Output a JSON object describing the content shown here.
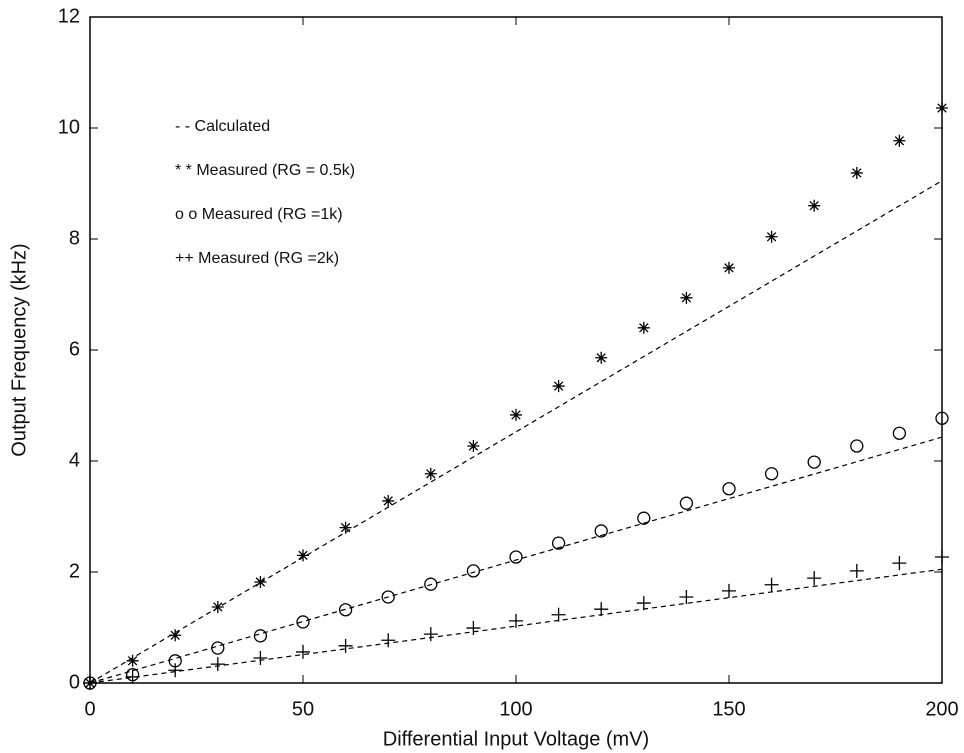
{
  "chart_data": {
    "type": "scatter",
    "xlabel": "Differential Input Voltage (mV)",
    "ylabel": "Output Frequency (kHz)",
    "xlim": [
      0,
      200
    ],
    "ylim": [
      0,
      12
    ],
    "xticks": [
      0,
      50,
      100,
      150,
      200
    ],
    "yticks": [
      0,
      2,
      4,
      6,
      8,
      10,
      12
    ],
    "series": [
      {
        "name": "- - Calculated",
        "style": "dashed",
        "color": "#000000",
        "x": [
          0,
          200
        ],
        "values": [
          0,
          9.05
        ]
      },
      {
        "style": "dashed",
        "color": "#000000",
        "x": [
          0,
          200
        ],
        "values": [
          0,
          4.43
        ]
      },
      {
        "style": "dashed",
        "color": "#000000",
        "x": [
          0,
          200
        ],
        "values": [
          0,
          2.05
        ]
      },
      {
        "name": "* * Measured (RG = 0.5k)",
        "marker": "star",
        "color": "#000000",
        "x": [
          0,
          10,
          20,
          30,
          40,
          50,
          60,
          70,
          80,
          90,
          100,
          110,
          120,
          130,
          140,
          150,
          160,
          170,
          180,
          190,
          200
        ],
        "values": [
          0,
          0.4,
          0.86,
          1.37,
          1.82,
          2.3,
          2.8,
          3.28,
          3.77,
          4.27,
          4.83,
          5.35,
          5.86,
          6.4,
          6.94,
          7.48,
          8.04,
          8.6,
          9.19,
          9.77,
          10.36
        ]
      },
      {
        "name": "o o Measured (RG =1k)",
        "marker": "circle",
        "color": "#000000",
        "x": [
          0,
          10,
          20,
          30,
          40,
          50,
          60,
          70,
          80,
          90,
          100,
          110,
          120,
          130,
          140,
          150,
          160,
          170,
          180,
          190,
          200
        ],
        "values": [
          0,
          0.15,
          0.4,
          0.63,
          0.85,
          1.1,
          1.32,
          1.55,
          1.78,
          2.02,
          2.27,
          2.52,
          2.74,
          2.97,
          3.24,
          3.5,
          3.77,
          3.98,
          4.27,
          4.5,
          4.77
        ]
      },
      {
        "name": "++ Measured (RG =2k)",
        "marker": "plus",
        "color": "#000000",
        "x": [
          0,
          10,
          20,
          30,
          40,
          50,
          60,
          70,
          80,
          90,
          100,
          110,
          120,
          130,
          140,
          150,
          160,
          170,
          180,
          190,
          200
        ],
        "values": [
          0,
          0.11,
          0.23,
          0.34,
          0.45,
          0.56,
          0.67,
          0.77,
          0.88,
          0.99,
          1.12,
          1.23,
          1.33,
          1.44,
          1.55,
          1.66,
          1.77,
          1.89,
          2.02,
          2.16,
          2.27
        ]
      }
    ]
  }
}
